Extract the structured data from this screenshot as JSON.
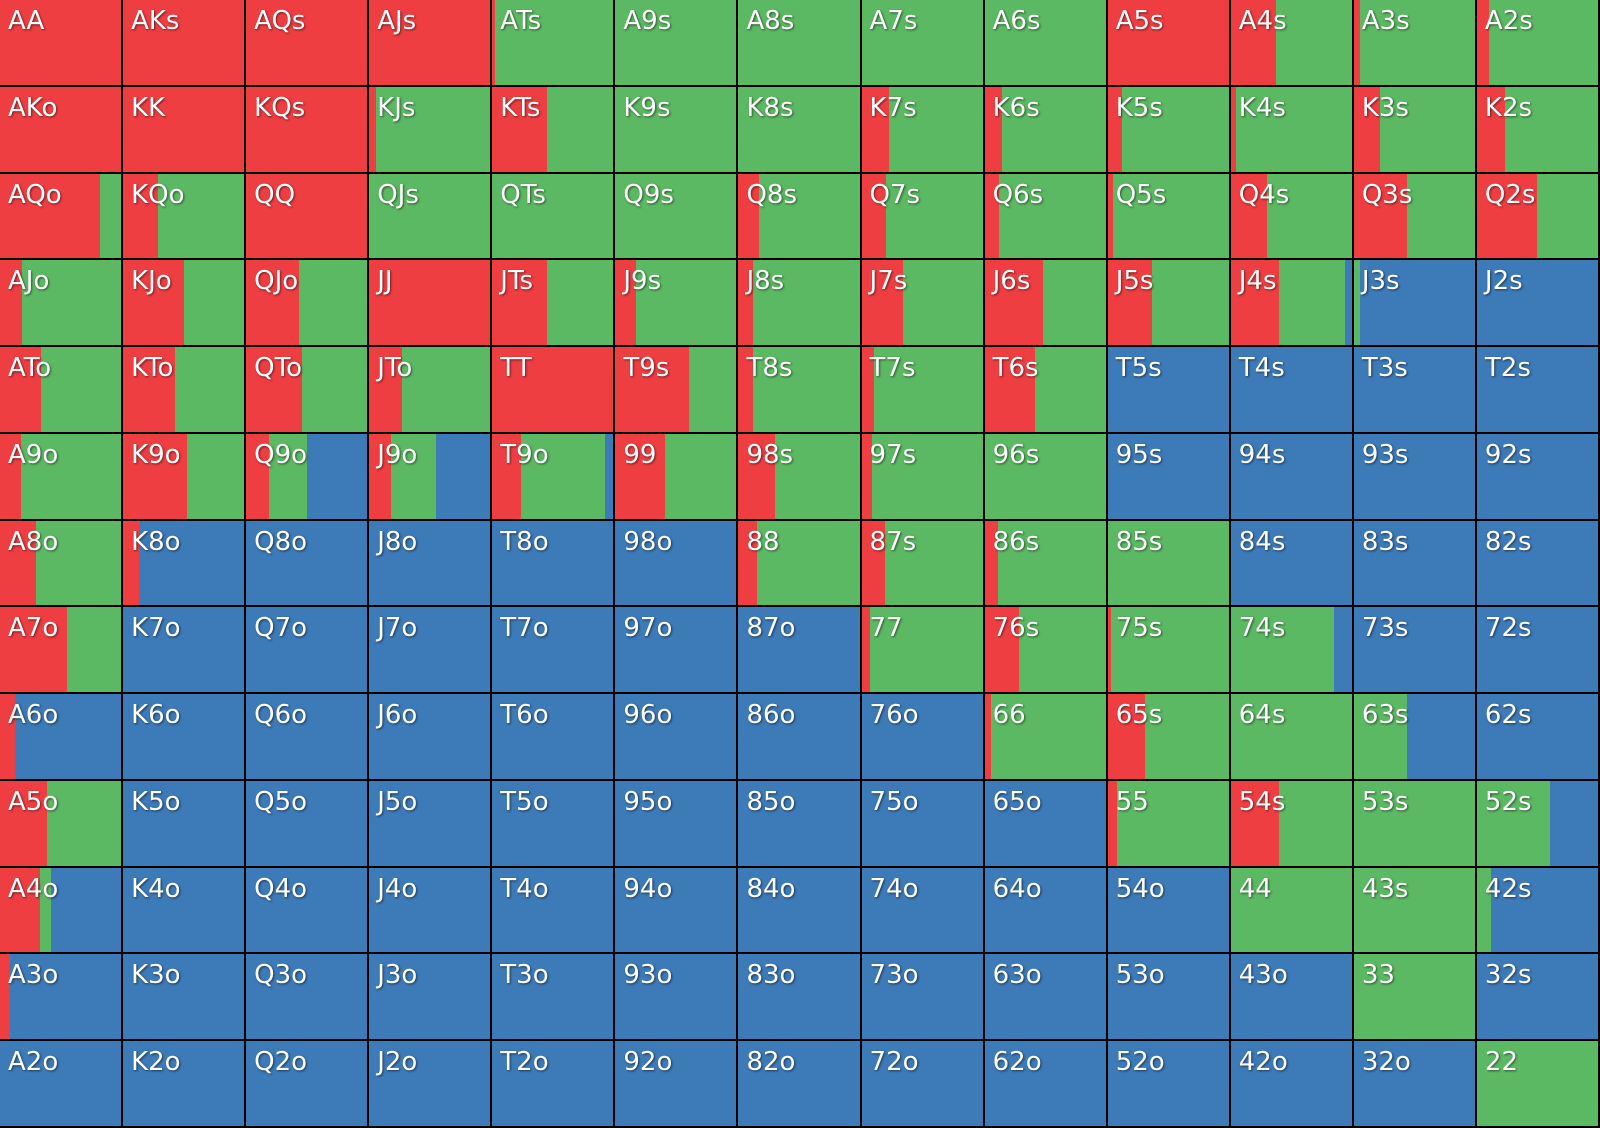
{
  "colors": {
    "raise": "#ef3e42",
    "call": "#5cb963",
    "fold": "#3d7ab8"
  },
  "rows": [
    [
      {
        "h": "AA",
        "r": 100,
        "c": 0
      },
      {
        "h": "AKs",
        "r": 100,
        "c": 0
      },
      {
        "h": "AQs",
        "r": 100,
        "c": 0
      },
      {
        "h": "AJs",
        "r": 100,
        "c": 0
      },
      {
        "h": "ATs",
        "r": 2,
        "c": 98
      },
      {
        "h": "A9s",
        "r": 0,
        "c": 100
      },
      {
        "h": "A8s",
        "r": 0,
        "c": 100
      },
      {
        "h": "A7s",
        "r": 0,
        "c": 100
      },
      {
        "h": "A6s",
        "r": 0,
        "c": 100
      },
      {
        "h": "A5s",
        "r": 100,
        "c": 0
      },
      {
        "h": "A4s",
        "r": 37,
        "c": 63
      },
      {
        "h": "A3s",
        "r": 5,
        "c": 95
      },
      {
        "h": "A2s",
        "r": 10,
        "c": 90
      }
    ],
    [
      {
        "h": "AKo",
        "r": 100,
        "c": 0
      },
      {
        "h": "KK",
        "r": 100,
        "c": 0
      },
      {
        "h": "KQs",
        "r": 100,
        "c": 0
      },
      {
        "h": "KJs",
        "r": 6,
        "c": 94
      },
      {
        "h": "KTs",
        "r": 45,
        "c": 55
      },
      {
        "h": "K9s",
        "r": 0,
        "c": 100
      },
      {
        "h": "K8s",
        "r": 0,
        "c": 100
      },
      {
        "h": "K7s",
        "r": 23,
        "c": 77
      },
      {
        "h": "K6s",
        "r": 14,
        "c": 86
      },
      {
        "h": "K5s",
        "r": 12,
        "c": 88
      },
      {
        "h": "K4s",
        "r": 4,
        "c": 96
      },
      {
        "h": "K3s",
        "r": 22,
        "c": 78
      },
      {
        "h": "K2s",
        "r": 23,
        "c": 77
      }
    ],
    [
      {
        "h": "AQo",
        "r": 83,
        "c": 17
      },
      {
        "h": "KQo",
        "r": 29,
        "c": 71
      },
      {
        "h": "QQ",
        "r": 100,
        "c": 0
      },
      {
        "h": "QJs",
        "r": 0,
        "c": 100
      },
      {
        "h": "QTs",
        "r": 0,
        "c": 100
      },
      {
        "h": "Q9s",
        "r": 0,
        "c": 100
      },
      {
        "h": "Q8s",
        "r": 17,
        "c": 83
      },
      {
        "h": "Q7s",
        "r": 20,
        "c": 80
      },
      {
        "h": "Q6s",
        "r": 12,
        "c": 88
      },
      {
        "h": "Q5s",
        "r": 4,
        "c": 96
      },
      {
        "h": "Q4s",
        "r": 30,
        "c": 70
      },
      {
        "h": "Q3s",
        "r": 44,
        "c": 56
      },
      {
        "h": "Q2s",
        "r": 50,
        "c": 50
      }
    ],
    [
      {
        "h": "AJo",
        "r": 18,
        "c": 82
      },
      {
        "h": "KJo",
        "r": 50,
        "c": 50
      },
      {
        "h": "QJo",
        "r": 44,
        "c": 56
      },
      {
        "h": "JJ",
        "r": 100,
        "c": 0
      },
      {
        "h": "JTs",
        "r": 45,
        "c": 55
      },
      {
        "h": "J9s",
        "r": 17,
        "c": 83
      },
      {
        "h": "J8s",
        "r": 12,
        "c": 88
      },
      {
        "h": "J7s",
        "r": 34,
        "c": 66
      },
      {
        "h": "J6s",
        "r": 48,
        "c": 52
      },
      {
        "h": "J5s",
        "r": 37,
        "c": 63
      },
      {
        "h": "J4s",
        "r": 40,
        "c": 54
      },
      {
        "h": "J3s",
        "r": 0,
        "c": 5
      },
      {
        "h": "J2s",
        "r": 0,
        "c": 0
      }
    ],
    [
      {
        "h": "ATo",
        "r": 34,
        "c": 66
      },
      {
        "h": "KTo",
        "r": 43,
        "c": 57
      },
      {
        "h": "QTo",
        "r": 46,
        "c": 54
      },
      {
        "h": "JTo",
        "r": 27,
        "c": 73
      },
      {
        "h": "TT",
        "r": 100,
        "c": 0
      },
      {
        "h": "T9s",
        "r": 61,
        "c": 39
      },
      {
        "h": "T8s",
        "r": 12,
        "c": 88
      },
      {
        "h": "T7s",
        "r": 10,
        "c": 90
      },
      {
        "h": "T6s",
        "r": 42,
        "c": 58
      },
      {
        "h": "T5s",
        "r": 0,
        "c": 0
      },
      {
        "h": "T4s",
        "r": 0,
        "c": 0
      },
      {
        "h": "T3s",
        "r": 0,
        "c": 0
      },
      {
        "h": "T2s",
        "r": 0,
        "c": 0
      }
    ],
    [
      {
        "h": "A9o",
        "r": 17,
        "c": 83
      },
      {
        "h": "K9o",
        "r": 53,
        "c": 47
      },
      {
        "h": "Q9o",
        "r": 19,
        "c": 31
      },
      {
        "h": "J9o",
        "r": 18,
        "c": 37
      },
      {
        "h": "T9o",
        "r": 24,
        "c": 69
      },
      {
        "h": "99",
        "r": 41,
        "c": 59
      },
      {
        "h": "98s",
        "r": 30,
        "c": 70
      },
      {
        "h": "97s",
        "r": 9,
        "c": 91
      },
      {
        "h": "96s",
        "r": 0,
        "c": 100
      },
      {
        "h": "95s",
        "r": 0,
        "c": 0
      },
      {
        "h": "94s",
        "r": 0,
        "c": 0
      },
      {
        "h": "93s",
        "r": 0,
        "c": 0
      },
      {
        "h": "92s",
        "r": 0,
        "c": 0
      }
    ],
    [
      {
        "h": "A8o",
        "r": 30,
        "c": 70
      },
      {
        "h": "K8o",
        "r": 13,
        "c": 0
      },
      {
        "h": "Q8o",
        "r": 0,
        "c": 0
      },
      {
        "h": "J8o",
        "r": 0,
        "c": 0
      },
      {
        "h": "T8o",
        "r": 0,
        "c": 0
      },
      {
        "h": "98o",
        "r": 0,
        "c": 0
      },
      {
        "h": "88",
        "r": 15,
        "c": 85
      },
      {
        "h": "87s",
        "r": 19,
        "c": 81
      },
      {
        "h": "86s",
        "r": 11,
        "c": 89
      },
      {
        "h": "85s",
        "r": 0,
        "c": 100
      },
      {
        "h": "84s",
        "r": 0,
        "c": 0
      },
      {
        "h": "83s",
        "r": 0,
        "c": 0
      },
      {
        "h": "82s",
        "r": 0,
        "c": 0
      }
    ],
    [
      {
        "h": "A7o",
        "r": 55,
        "c": 45
      },
      {
        "h": "K7o",
        "r": 0,
        "c": 0
      },
      {
        "h": "Q7o",
        "r": 0,
        "c": 0
      },
      {
        "h": "J7o",
        "r": 0,
        "c": 0
      },
      {
        "h": "T7o",
        "r": 0,
        "c": 0
      },
      {
        "h": "97o",
        "r": 0,
        "c": 0
      },
      {
        "h": "87o",
        "r": 0,
        "c": 0
      },
      {
        "h": "77",
        "r": 7,
        "c": 93
      },
      {
        "h": "76s",
        "r": 28,
        "c": 72
      },
      {
        "h": "75s",
        "r": 3,
        "c": 97
      },
      {
        "h": "74s",
        "r": 0,
        "c": 85
      },
      {
        "h": "73s",
        "r": 0,
        "c": 0
      },
      {
        "h": "72s",
        "r": 0,
        "c": 0
      }
    ],
    [
      {
        "h": "A6o",
        "r": 12,
        "c": 0
      },
      {
        "h": "K6o",
        "r": 0,
        "c": 0
      },
      {
        "h": "Q6o",
        "r": 0,
        "c": 0
      },
      {
        "h": "J6o",
        "r": 0,
        "c": 0
      },
      {
        "h": "T6o",
        "r": 0,
        "c": 0
      },
      {
        "h": "96o",
        "r": 0,
        "c": 0
      },
      {
        "h": "86o",
        "r": 0,
        "c": 0
      },
      {
        "h": "76o",
        "r": 0,
        "c": 0
      },
      {
        "h": "66",
        "r": 5,
        "c": 95
      },
      {
        "h": "65s",
        "r": 31,
        "c": 69
      },
      {
        "h": "64s",
        "r": 0,
        "c": 100
      },
      {
        "h": "63s",
        "r": 0,
        "c": 44
      },
      {
        "h": "62s",
        "r": 0,
        "c": 0
      }
    ],
    [
      {
        "h": "A5o",
        "r": 39,
        "c": 61
      },
      {
        "h": "K5o",
        "r": 0,
        "c": 0
      },
      {
        "h": "Q5o",
        "r": 0,
        "c": 0
      },
      {
        "h": "J5o",
        "r": 0,
        "c": 0
      },
      {
        "h": "T5o",
        "r": 0,
        "c": 0
      },
      {
        "h": "95o",
        "r": 0,
        "c": 0
      },
      {
        "h": "85o",
        "r": 0,
        "c": 0
      },
      {
        "h": "75o",
        "r": 0,
        "c": 0
      },
      {
        "h": "65o",
        "r": 0,
        "c": 0
      },
      {
        "h": "55",
        "r": 8,
        "c": 92
      },
      {
        "h": "54s",
        "r": 40,
        "c": 60
      },
      {
        "h": "53s",
        "r": 0,
        "c": 100
      },
      {
        "h": "52s",
        "r": 0,
        "c": 60
      }
    ],
    [
      {
        "h": "A4o",
        "r": 33,
        "c": 9
      },
      {
        "h": "K4o",
        "r": 0,
        "c": 0
      },
      {
        "h": "Q4o",
        "r": 0,
        "c": 0
      },
      {
        "h": "J4o",
        "r": 0,
        "c": 0
      },
      {
        "h": "T4o",
        "r": 0,
        "c": 0
      },
      {
        "h": "94o",
        "r": 0,
        "c": 0
      },
      {
        "h": "84o",
        "r": 0,
        "c": 0
      },
      {
        "h": "74o",
        "r": 0,
        "c": 0
      },
      {
        "h": "64o",
        "r": 0,
        "c": 0
      },
      {
        "h": "54o",
        "r": 0,
        "c": 0
      },
      {
        "h": "44",
        "r": 0,
        "c": 100
      },
      {
        "h": "43s",
        "r": 0,
        "c": 100
      },
      {
        "h": "42s",
        "r": 0,
        "c": 12
      }
    ],
    [
      {
        "h": "A3o",
        "r": 8,
        "c": 0
      },
      {
        "h": "K3o",
        "r": 0,
        "c": 0
      },
      {
        "h": "Q3o",
        "r": 0,
        "c": 0
      },
      {
        "h": "J3o",
        "r": 0,
        "c": 0
      },
      {
        "h": "T3o",
        "r": 0,
        "c": 0
      },
      {
        "h": "93o",
        "r": 0,
        "c": 0
      },
      {
        "h": "83o",
        "r": 0,
        "c": 0
      },
      {
        "h": "73o",
        "r": 0,
        "c": 0
      },
      {
        "h": "63o",
        "r": 0,
        "c": 0
      },
      {
        "h": "53o",
        "r": 0,
        "c": 0
      },
      {
        "h": "43o",
        "r": 0,
        "c": 0
      },
      {
        "h": "33",
        "r": 0,
        "c": 100
      },
      {
        "h": "32s",
        "r": 0,
        "c": 0
      }
    ],
    [
      {
        "h": "A2o",
        "r": 0,
        "c": 0
      },
      {
        "h": "K2o",
        "r": 0,
        "c": 0
      },
      {
        "h": "Q2o",
        "r": 0,
        "c": 0
      },
      {
        "h": "J2o",
        "r": 0,
        "c": 0
      },
      {
        "h": "T2o",
        "r": 0,
        "c": 0
      },
      {
        "h": "92o",
        "r": 0,
        "c": 0
      },
      {
        "h": "82o",
        "r": 0,
        "c": 0
      },
      {
        "h": "72o",
        "r": 0,
        "c": 0
      },
      {
        "h": "62o",
        "r": 0,
        "c": 0
      },
      {
        "h": "52o",
        "r": 0,
        "c": 0
      },
      {
        "h": "42o",
        "r": 0,
        "c": 0
      },
      {
        "h": "32o",
        "r": 0,
        "c": 0
      },
      {
        "h": "22",
        "r": 0,
        "c": 100
      }
    ]
  ]
}
